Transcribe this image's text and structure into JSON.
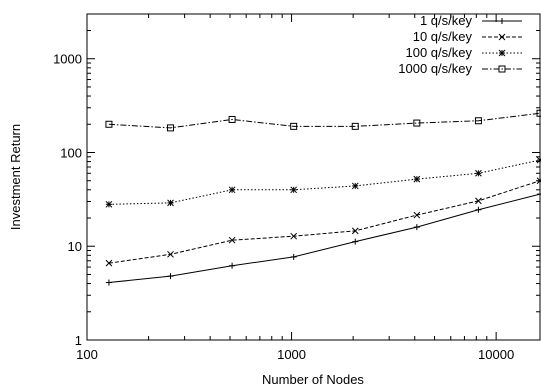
{
  "chart_data": {
    "type": "line",
    "xlabel": "Number of Nodes",
    "ylabel": "Investment Return",
    "x_scale": "log",
    "y_scale": "log",
    "xlim": [
      100,
      16384
    ],
    "ylim": [
      1,
      3000
    ],
    "x_ticks": [
      100,
      1000,
      10000
    ],
    "y_ticks": [
      1,
      10,
      100,
      1000
    ],
    "grid": false,
    "legend_position": "top-right",
    "x": [
      128,
      256,
      512,
      1024,
      2048,
      4096,
      8192,
      16384
    ],
    "series": [
      {
        "name": "1 q/s/key",
        "dash": "solid",
        "marker": "plus",
        "color": "#000000",
        "values": [
          4.1,
          4.8,
          6.2,
          7.7,
          11.2,
          16,
          24.5,
          36
        ]
      },
      {
        "name": "10 q/s/key",
        "dash": "dashed",
        "marker": "cross",
        "color": "#000000",
        "values": [
          6.6,
          8.2,
          11.6,
          12.8,
          14.6,
          21.5,
          30.5,
          50
        ]
      },
      {
        "name": "100 q/s/key",
        "dash": "dotted",
        "marker": "star",
        "color": "#000000",
        "values": [
          28,
          29,
          40,
          40,
          44,
          52,
          60,
          83
        ]
      },
      {
        "name": "1000 q/s/key",
        "dash": "dashdot",
        "marker": "square",
        "color": "#000000",
        "values": [
          200,
          183,
          225,
          190,
          190,
          206,
          218,
          262
        ]
      }
    ]
  }
}
